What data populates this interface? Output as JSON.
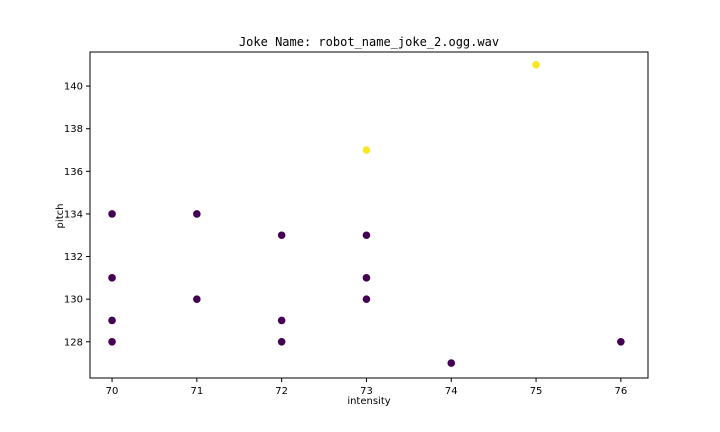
{
  "chart_data": {
    "type": "scatter",
    "title": "Joke Name: robot_name_joke_2.ogg.wav",
    "xlabel": "intensity",
    "ylabel": "pitch",
    "xlim": [
      69.74,
      76.32
    ],
    "ylim": [
      126.3,
      141.6
    ],
    "xticks": [
      70,
      71,
      72,
      73,
      74,
      75,
      76
    ],
    "yticks": [
      128,
      130,
      132,
      134,
      136,
      138,
      140
    ],
    "grid": false,
    "colors": {
      "low": "#440154",
      "high": "#fde725"
    },
    "points": [
      {
        "x": 70,
        "y": 134,
        "cls": "low"
      },
      {
        "x": 70,
        "y": 131,
        "cls": "low"
      },
      {
        "x": 70,
        "y": 129,
        "cls": "low"
      },
      {
        "x": 70,
        "y": 128,
        "cls": "low"
      },
      {
        "x": 71,
        "y": 134,
        "cls": "low"
      },
      {
        "x": 71,
        "y": 130,
        "cls": "low"
      },
      {
        "x": 72,
        "y": 133,
        "cls": "low"
      },
      {
        "x": 72,
        "y": 129,
        "cls": "low"
      },
      {
        "x": 72,
        "y": 128,
        "cls": "low"
      },
      {
        "x": 73,
        "y": 137,
        "cls": "high"
      },
      {
        "x": 73,
        "y": 133,
        "cls": "low"
      },
      {
        "x": 73,
        "y": 131,
        "cls": "low"
      },
      {
        "x": 73,
        "y": 130,
        "cls": "low"
      },
      {
        "x": 74,
        "y": 127,
        "cls": "low"
      },
      {
        "x": 75,
        "y": 141,
        "cls": "high"
      },
      {
        "x": 76,
        "y": 128,
        "cls": "low"
      }
    ]
  }
}
